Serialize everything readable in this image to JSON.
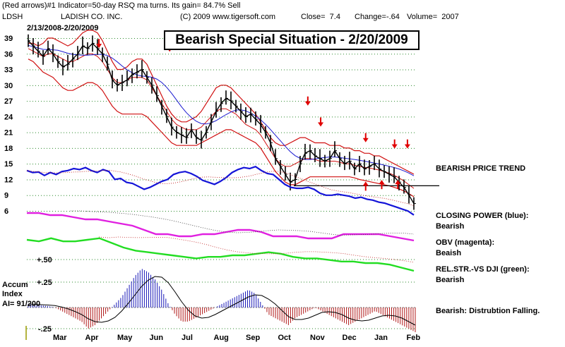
{
  "header": {
    "line1": "(Red arrows)#1 Indicator=50-day RSQ ma turns. Its gain= 84.7% Sell",
    "symbol": "LDSH",
    "company": "LADISH CO. INC.",
    "copyright": "(C) 2009 www.tigersoft.com",
    "close": "Close=  7.4",
    "change": "Change=-.64",
    "volume": "Volume=  2007",
    "date_range": "2/13/2008-2/20/2009"
  },
  "title": "Bearish Special Situation - 2/20/2009",
  "annotations": {
    "price_trend": "BEARISH PRICE TREND",
    "closing_power": "CLOSING POWER (blue):",
    "closing_power_status": "Bearish",
    "obv": "OBV (magenta):",
    "obv_status": "Beaish",
    "relstr": "REL.STR.-VS DJI (green):",
    "relstr_status": "Bearish",
    "accum_status": "Bearish: Distrubtion Falling."
  },
  "accum_label": {
    "l1": "Accum",
    "l2": "Index",
    "l3": "AI= 91/200"
  },
  "chart_data": {
    "type": "line",
    "title": "Bearish Special Situation - 2/20/2009",
    "price_axis_ticks": [
      39,
      36,
      33,
      30,
      27,
      24,
      21,
      18,
      15,
      12,
      9,
      6
    ],
    "accum_axis_ticks": [
      "+.50",
      "+.25",
      "-.25"
    ],
    "months": [
      "Mar",
      "Apr",
      "May",
      "Jun",
      "Jul",
      "Aug",
      "Sep",
      "Oct",
      "Nov",
      "Dec",
      "Jan",
      "Feb"
    ],
    "price_close": [
      38.5,
      37.5,
      36.5,
      35.5,
      37,
      36,
      34.5,
      33.5,
      34,
      35,
      36,
      37.5,
      37,
      38,
      37,
      36,
      34,
      31,
      30,
      30.5,
      31,
      32,
      32.5,
      33,
      31.5,
      30,
      28,
      26,
      24,
      22,
      21,
      20.5,
      20,
      21.5,
      20,
      19.5,
      21,
      23,
      25,
      26.5,
      27.5,
      27,
      26,
      25,
      24,
      24.5,
      23.5,
      22.5,
      21,
      19,
      16,
      14.5,
      13,
      11.5,
      12,
      15,
      17,
      17.5,
      16.5,
      16,
      15.5,
      16,
      17.5,
      16,
      15,
      15.5,
      14,
      15,
      14,
      14.5,
      15,
      14,
      13.5,
      13,
      12.5,
      11.5,
      10.5,
      9,
      7.4
    ],
    "price_upper_band": [
      38,
      38,
      37.5,
      38,
      39,
      39,
      38.5,
      38,
      37.5,
      38,
      39,
      40,
      40.5,
      40.5,
      40,
      38.5,
      36.5,
      34.5,
      33,
      33,
      33.5,
      34.5,
      35,
      35,
      34,
      32,
      30,
      28,
      26,
      24.5,
      23.5,
      23,
      23,
      23.5,
      24,
      25,
      26.5,
      28,
      29.5,
      30,
      30,
      29.5,
      28.5,
      27.5,
      26.5,
      25.5,
      24.5,
      23,
      21.5,
      20,
      19,
      18.5,
      18.5,
      19,
      19.5,
      20,
      20,
      19.5,
      19,
      19,
      19,
      18.5,
      18.5,
      18.5,
      18,
      18,
      17.5,
      17.5,
      17,
      17,
      16.5,
      16.5,
      16,
      15.5,
      15,
      14.5,
      14,
      13.5,
      13
    ],
    "price_middle_ma": [
      37,
      36.5,
      36,
      35.5,
      36,
      36,
      35.5,
      35,
      34.5,
      34.5,
      35,
      35.5,
      36,
      36,
      35.5,
      34.5,
      33,
      31.5,
      30.5,
      30.5,
      31,
      31.5,
      31.5,
      31.5,
      31,
      29.5,
      28,
      26.5,
      25,
      23.5,
      22.5,
      22,
      21.5,
      21.5,
      21.5,
      22,
      23,
      24,
      25,
      25.5,
      25.5,
      25,
      24.5,
      23.5,
      22.5,
      22,
      21.5,
      20.5,
      19,
      17.5,
      16,
      15,
      14.5,
      14.5,
      15,
      15.5,
      16,
      16,
      15.8,
      15.5,
      15.5,
      15.5,
      15.5,
      15.3,
      15,
      15,
      14.7,
      14.5,
      14.3,
      14.2,
      14,
      13.8,
      13.5,
      13.2,
      12.8,
      12.3,
      11.7,
      11,
      10.3
    ],
    "price_lower_band": [
      35,
      34.5,
      33.5,
      32.5,
      32,
      31.5,
      30.5,
      29.5,
      29,
      29,
      29.5,
      30,
      30.5,
      30.5,
      30,
      29,
      27.5,
      26,
      25,
      24.5,
      24.5,
      24.5,
      24.5,
      24.5,
      24,
      23,
      22,
      21,
      20,
      19,
      18.5,
      18.5,
      18.5,
      18.5,
      18.5,
      19,
      19.5,
      20,
      20.5,
      21,
      21.5,
      21.5,
      21,
      20.5,
      20,
      19.5,
      19,
      18,
      16.5,
      15,
      13.5,
      12.5,
      11.5,
      11,
      11,
      11.5,
      12,
      12.5,
      12.5,
      12.5,
      12.5,
      12.5,
      12.5,
      12.5,
      12.5,
      12.5,
      12.3,
      12,
      11.8,
      11.6,
      11.4,
      11.2,
      11,
      10.8,
      10.5,
      10.2,
      9.8,
      9.3,
      8.7
    ],
    "sell_arrows": [
      {
        "month_index": 2.2,
        "price": 37.5
      },
      {
        "month_index": 4.4,
        "price": 36.8
      },
      {
        "month_index": 8.7,
        "price": 26.5
      },
      {
        "month_index": 9.1,
        "price": 22.5
      },
      {
        "month_index": 10.5,
        "price": 19.5
      },
      {
        "month_index": 11.4,
        "price": 18.3
      },
      {
        "month_index": 11.8,
        "price": 18.3
      }
    ],
    "buy_arrows": [
      {
        "month_index": 10.5,
        "price": 11.2
      },
      {
        "month_index": 11.0,
        "price": 11.5
      },
      {
        "month_index": 11.5,
        "price": 11.5
      }
    ],
    "support_line_price": 10.8,
    "closing_power": [
      0.3,
      0.1,
      0.15,
      -0.2,
      0.1,
      -0.1,
      0.2,
      0.3,
      0.5,
      0.4,
      0.6,
      0.3,
      0.1,
      0.4,
      0.2,
      -0.6,
      -0.5,
      -0.9,
      -1.0,
      -1.3,
      -1.6,
      -1.4,
      -1.1,
      -0.8,
      -0.6,
      -0.1,
      0.1,
      0.2,
      0.0,
      -0.3,
      -0.7,
      -0.9,
      -1.1,
      -0.8,
      -0.4,
      0.1,
      0.4,
      0.6,
      0.5,
      0.7,
      0.3,
      0.0,
      -0.1,
      -0.6,
      -1.1,
      -1.4,
      -1.5,
      -1.5,
      -1.4,
      -1.6,
      -2.0,
      -2.2,
      -2.2,
      -2.1,
      -2.2,
      -2.3,
      -2.5,
      -2.4,
      -2.6,
      -2.7,
      -2.9,
      -3.0,
      -3.2,
      -3.4,
      -3.6,
      -3.8,
      -4.2
    ],
    "obv": [
      0.0,
      0.0,
      -0.1,
      -0.1,
      -0.2,
      -0.3,
      -0.3,
      -0.4,
      -0.5,
      -0.6,
      -0.8,
      -1.0,
      -1.0,
      -1.1,
      -1.1,
      -1.0,
      -1.0,
      -0.9,
      -0.8,
      -0.8,
      -0.9,
      -1.1,
      -1.1,
      -1.1,
      -1.2,
      -1.2,
      -1.2,
      -1.0,
      -1.0,
      -1.0,
      -1.0,
      -1.1,
      -1.2,
      -1.3
    ],
    "relstr_dji": [
      0.0,
      -0.1,
      0.1,
      -0.1,
      -0.1,
      0.0,
      0.1,
      -0.2,
      -0.5,
      -0.7,
      -0.8,
      -0.9,
      -1.0,
      -1.1,
      -1.2,
      -1.1,
      -1.1,
      -1.0,
      -1.0,
      -0.9,
      -0.8,
      -0.9,
      -1.1,
      -1.2,
      -1.2,
      -1.3,
      -1.4,
      -1.4,
      -1.5,
      -1.5,
      -1.6,
      -1.8,
      -2.0
    ],
    "accum_index": [
      0.05,
      0.04,
      0.03,
      0.02,
      0.0,
      -0.05,
      -0.1,
      -0.15,
      -0.2,
      -0.3,
      -0.25,
      -0.15,
      -0.05,
      0.05,
      0.15,
      0.3,
      0.45,
      0.55,
      0.5,
      0.4,
      0.25,
      0.05,
      -0.1,
      -0.2,
      -0.2,
      -0.15,
      -0.1,
      -0.05,
      0.0,
      0.05,
      0.1,
      0.15,
      0.2,
      0.25,
      0.2,
      0.05,
      -0.1,
      -0.15,
      -0.2,
      -0.25,
      -0.15,
      -0.1,
      -0.05,
      0.0,
      -0.05,
      -0.1,
      -0.15,
      -0.2,
      -0.25,
      -0.2,
      -0.15,
      -0.1,
      -0.05,
      -0.1,
      -0.15,
      -0.2,
      -0.25,
      -0.3,
      -0.35
    ]
  }
}
